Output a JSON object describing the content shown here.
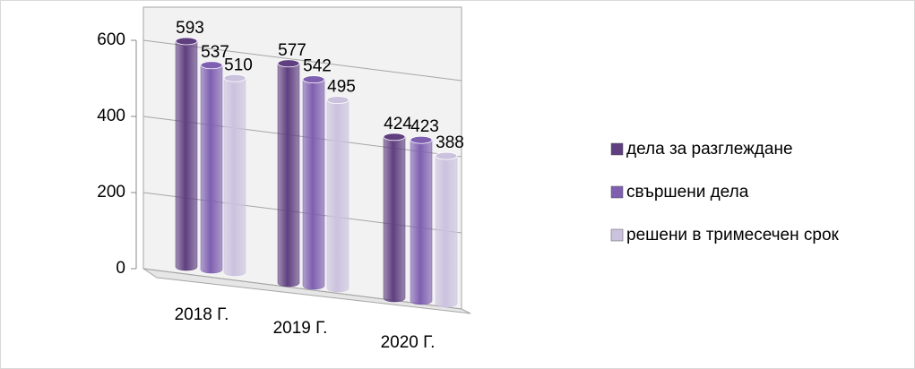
{
  "chart_data": {
    "type": "bar3d",
    "categories": [
      "2018 Г.",
      "2019 Г.",
      "2020 Г."
    ],
    "series": [
      {
        "name": "дела за разглеждане",
        "color": "#5f3f80",
        "values": [
          593,
          577,
          424
        ]
      },
      {
        "name": "свършени дела",
        "color": "#7e5fb0",
        "values": [
          537,
          542,
          423
        ]
      },
      {
        "name": "решени в тримесечен срок",
        "color": "#cbc2de",
        "values": [
          510,
          495,
          388
        ]
      }
    ],
    "ylim": [
      0,
      600
    ],
    "yticks": [
      0,
      200,
      400,
      600
    ],
    "grid": true,
    "legend": "right"
  }
}
